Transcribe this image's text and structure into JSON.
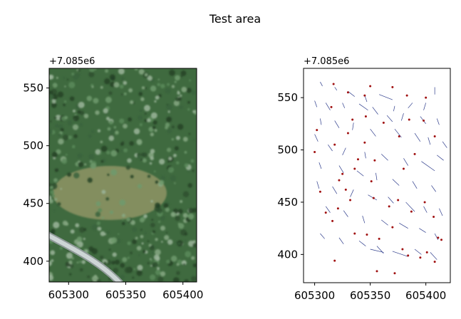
{
  "figure": {
    "title": "Test area"
  },
  "chart_data": [
    {
      "type": "image",
      "title": "",
      "xlabel": "",
      "ylabel": "",
      "y_offset_label": "+7.085e6",
      "xlim": [
        605283,
        605412
      ],
      "ylim": [
        382,
        567
      ],
      "xticks": [
        605300,
        605350,
        605400
      ],
      "xtick_labels": [
        "605300",
        "605350",
        "605400"
      ],
      "yticks": [
        400,
        450,
        500,
        550
      ],
      "ytick_labels": [
        "400",
        "450",
        "500",
        "550"
      ],
      "image": {
        "content": "aerial orthophoto of forest canopy with a clearing and a gravel road",
        "base_color": "#3f6a3f",
        "clearing_color": "#9a9a6a",
        "road_color": "#cdd5d5"
      },
      "grid": false
    },
    {
      "type": "scatter",
      "title": "",
      "xlabel": "",
      "ylabel": "",
      "y_offset_label": "+7.085e6",
      "xlim": [
        605290,
        605422
      ],
      "ylim": [
        373,
        578
      ],
      "xticks": [
        605300,
        605350,
        605400
      ],
      "xtick_labels": [
        "605300",
        "605350",
        "605400"
      ],
      "yticks": [
        400,
        450,
        500,
        550
      ],
      "ytick_labels": [
        "400",
        "450",
        "500",
        "550"
      ],
      "grid": false,
      "series": [
        {
          "marker": "line-segments",
          "color": "#2b3a8a",
          "segments": [
            [
              605305,
              565,
              605307,
              561
            ],
            [
              605318,
              560,
              605320,
              557
            ],
            [
              605330,
              556,
              605336,
              551
            ],
            [
              605345,
              552,
              605347,
              546
            ],
            [
              605358,
              553,
              605370,
              548
            ],
            [
              605372,
              542,
              605371,
              537
            ],
            [
              605388,
              545,
              605384,
              540
            ],
            [
              605400,
              545,
              605398,
              538
            ],
            [
              605408,
              560,
              605408,
              553
            ],
            [
              605300,
              547,
              605302,
              541
            ],
            [
              605310,
              545,
              605314,
              538
            ],
            [
              605325,
              545,
              605327,
              540
            ],
            [
              605340,
              544,
              605348,
              538
            ],
            [
              605352,
              541,
              605357,
              534
            ],
            [
              605365,
              533,
              605370,
              527
            ],
            [
              605380,
              535,
              605378,
              528
            ],
            [
              605395,
              532,
              605400,
              525
            ],
            [
              605410,
              530,
              605412,
              524
            ],
            [
              605305,
              530,
              605306,
              524
            ],
            [
              605318,
              528,
              605322,
              521
            ],
            [
              605335,
              526,
              605334,
              519
            ],
            [
              605350,
              520,
              605355,
              513
            ],
            [
              605372,
              520,
              605378,
              512
            ],
            [
              605390,
              516,
              605395,
              508
            ],
            [
              605402,
              512,
              605404,
              505
            ],
            [
              605415,
              508,
              605419,
              502
            ],
            [
              605300,
              515,
              605303,
              508
            ],
            [
              605312,
              505,
              605316,
              499
            ],
            [
              605328,
              502,
              605325,
              495
            ],
            [
              605345,
              498,
              605346,
              492
            ],
            [
              605360,
              496,
              605366,
              490
            ],
            [
              605380,
              492,
              605384,
              485
            ],
            [
              605396,
              489,
              605408,
              480
            ],
            [
              605410,
              495,
              605416,
              490
            ],
            [
              605304,
              488,
              605306,
              482
            ],
            [
              605322,
              485,
              605326,
              478
            ],
            [
              605338,
              480,
              605344,
              475
            ],
            [
              605355,
              478,
              605356,
              471
            ],
            [
              605370,
              472,
              605376,
              466
            ],
            [
              605388,
              470,
              605392,
              463
            ],
            [
              605405,
              466,
              605409,
              460
            ],
            [
              605302,
              470,
              605304,
              463
            ],
            [
              605316,
              465,
              605320,
              458
            ],
            [
              605335,
              462,
              605332,
              455
            ],
            [
              605348,
              457,
              605356,
              452
            ],
            [
              605366,
              455,
              605371,
              449
            ],
            [
              605382,
              450,
              605390,
              441
            ],
            [
              605398,
              446,
              605401,
              440
            ],
            [
              605412,
              444,
              605415,
              437
            ],
            [
              605310,
              446,
              605314,
              440
            ],
            [
              605326,
              442,
              605330,
              436
            ],
            [
              605343,
              437,
              605345,
              430
            ],
            [
              605360,
              433,
              605366,
              428
            ],
            [
              605376,
              430,
              605384,
              425
            ],
            [
              605394,
              425,
              605400,
              421
            ],
            [
              605408,
              420,
              605411,
              414
            ],
            [
              605305,
              420,
              605309,
              415
            ],
            [
              605322,
              416,
              605326,
              410
            ],
            [
              605340,
              413,
              605346,
              408
            ],
            [
              605356,
              408,
              605362,
              401
            ],
            [
              605370,
              403,
              605384,
              398
            ],
            [
              605390,
              405,
              605396,
              400
            ],
            [
              605404,
              402,
              605410,
              395
            ],
            [
              605350,
              405,
              605362,
              402
            ]
          ]
        },
        {
          "marker": "dot",
          "color": "#a01010",
          "points": [
            [
              605317,
              563
            ],
            [
              605350,
              561
            ],
            [
              605370,
              560
            ],
            [
              605383,
              552
            ],
            [
              605330,
              555
            ],
            [
              605345,
              552
            ],
            [
              605315,
              541
            ],
            [
              605385,
              529
            ],
            [
              605398,
              528
            ],
            [
              605400,
              550
            ],
            [
              605346,
              532
            ],
            [
              605334,
              529
            ],
            [
              605302,
              519
            ],
            [
              605330,
              516
            ],
            [
              605345,
              507
            ],
            [
              605362,
              526
            ],
            [
              605376,
              513
            ],
            [
              605318,
              505
            ],
            [
              605408,
              513
            ],
            [
              605300,
              498
            ],
            [
              605339,
              491
            ],
            [
              605354,
              490
            ],
            [
              605325,
              477
            ],
            [
              605336,
              482
            ],
            [
              605351,
              470
            ],
            [
              605380,
              482
            ],
            [
              605390,
              496
            ],
            [
              605322,
              471
            ],
            [
              605305,
              460
            ],
            [
              605328,
              462
            ],
            [
              605332,
              452
            ],
            [
              605353,
              454
            ],
            [
              605375,
              452
            ],
            [
              605387,
              441
            ],
            [
              605399,
              450
            ],
            [
              605407,
              436
            ],
            [
              605310,
              440
            ],
            [
              605316,
              432
            ],
            [
              605336,
              420
            ],
            [
              605347,
              419
            ],
            [
              605358,
              415
            ],
            [
              605370,
              426
            ],
            [
              605379,
              405
            ],
            [
              605384,
              399
            ],
            [
              605395,
              397
            ],
            [
              605408,
              393
            ],
            [
              605411,
              416
            ],
            [
              605318,
              394
            ],
            [
              605356,
              384
            ],
            [
              605372,
              382
            ],
            [
              605401,
              402
            ],
            [
              605414,
              414
            ],
            [
              605321,
              444
            ],
            [
              605367,
              446
            ]
          ]
        }
      ]
    }
  ]
}
